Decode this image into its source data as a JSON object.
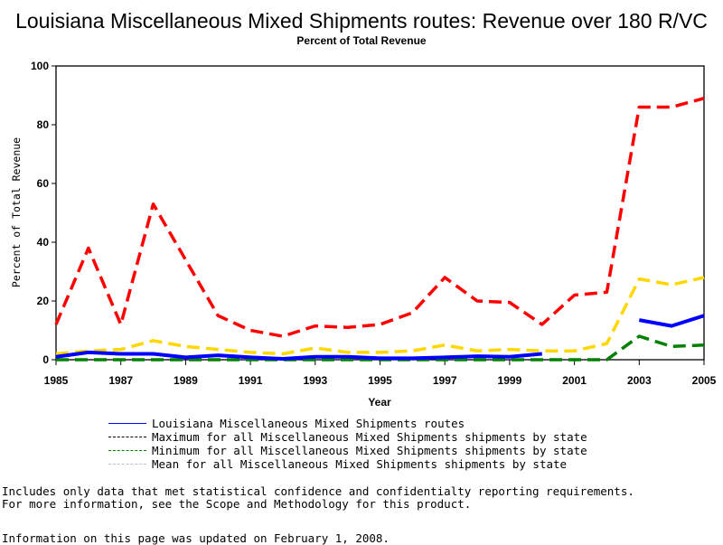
{
  "chart_data": {
    "type": "line",
    "title": "Louisiana Miscellaneous Mixed Shipments routes: Revenue over 180 R/VC",
    "subtitle": "Percent of Total Revenue",
    "xlabel": "Year",
    "ylabel": "Percent of Total Revenue",
    "xlim": [
      1985,
      2005
    ],
    "ylim": [
      0,
      100
    ],
    "x_ticks": [
      "1985",
      "1987",
      "1989",
      "1991",
      "1993",
      "1995",
      "1997",
      "1999",
      "2001",
      "2003",
      "2005"
    ],
    "y_ticks": [
      "0",
      "20",
      "40",
      "60",
      "80",
      "100"
    ],
    "grid": false,
    "legend_placement": "bottom",
    "x": [
      1985,
      1986,
      1987,
      1988,
      1989,
      1990,
      1991,
      1992,
      1993,
      1994,
      1995,
      1996,
      1997,
      1998,
      1999,
      2000,
      2001,
      2002,
      2003,
      2004,
      2005
    ],
    "series": [
      {
        "name": "Louisiana Miscellaneous Mixed Shipments routes",
        "color": "#0000ff",
        "style": "solid",
        "values": [
          1,
          2.5,
          2,
          2,
          0.8,
          1.5,
          0.8,
          0.3,
          1,
          1,
          0.5,
          0.5,
          0.8,
          1.2,
          1,
          2,
          null,
          null,
          13.5,
          11.5,
          15
        ]
      },
      {
        "name": "Maximum for all Miscellaneous Mixed Shipments shipments by state",
        "color": "#ff0000",
        "style": "dashed",
        "values": [
          12,
          38,
          12,
          53,
          34,
          15,
          10,
          8,
          11.5,
          11,
          12,
          16,
          28,
          20,
          19.5,
          12,
          22,
          23,
          86,
          86,
          89
        ]
      },
      {
        "name": "Minimum for all Miscellaneous Mixed Shipments shipments by state",
        "color": "#008000",
        "style": "dashed",
        "values": [
          0,
          0,
          0,
          0,
          0,
          0,
          0,
          0,
          0,
          0,
          0,
          0,
          0,
          0,
          0,
          0,
          0,
          0,
          8,
          4.5,
          5
        ]
      },
      {
        "name": "Mean for all Miscellaneous Mixed Shipments shipments by state",
        "color": "#ffd700",
        "style": "dashed",
        "values": [
          2,
          3,
          3.5,
          6.5,
          4.5,
          3.5,
          2.5,
          2,
          4,
          2.5,
          2.5,
          3,
          5,
          3,
          3.5,
          3,
          3,
          5.5,
          27.5,
          25.5,
          28
        ]
      }
    ],
    "legend_colors": [
      "#0000ff",
      "#000000",
      "#008000",
      "#c0c0c0"
    ]
  },
  "notes": {
    "line1": "Includes only data that met statistical confidence and confidentialty reporting requirements.",
    "line2": "For more information, see the Scope and Methodology for this product.",
    "updated": "Information on this page was updated on February 1, 2008."
  }
}
